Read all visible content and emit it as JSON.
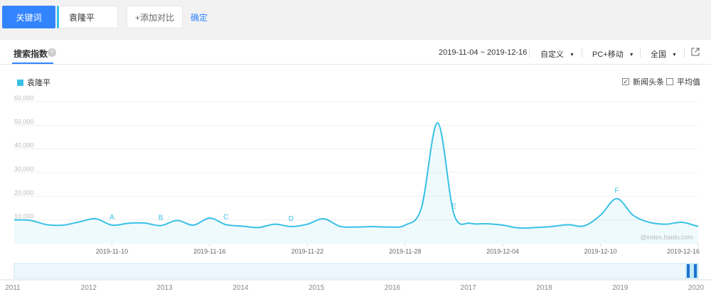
{
  "topbar": {
    "keyword_button": "关键词",
    "keyword_value": "袁隆平",
    "add_compare": "+添加对比",
    "confirm": "确定"
  },
  "panel": {
    "title": "搜索指数",
    "date_range": "2019-11-04 ~ 2019-12-16",
    "custom_label": "自定义",
    "device_label": "PC+移动",
    "region_label": "全国",
    "watermark": "@index.baidu.com"
  },
  "legend": {
    "series_name": "袁隆平",
    "checkbox_news": "新闻头条",
    "checkbox_avg": "平均值",
    "news_checked": true,
    "avg_checked": false,
    "series_color": "#39c1e6"
  },
  "chart_data": {
    "type": "area",
    "ylim": [
      0,
      60000
    ],
    "y_ticks": [
      "10,000",
      "20,000",
      "30,000",
      "40,000",
      "50,000",
      "60,000"
    ],
    "x_ticks": [
      "2019-11-10",
      "2019-11-16",
      "2019-11-22",
      "2019-11-28",
      "2019-12-04",
      "2019-12-10",
      "2019-12-16"
    ],
    "series": [
      {
        "name": "袁隆平",
        "x": [
          "2019-11-04",
          "2019-11-05",
          "2019-11-06",
          "2019-11-07",
          "2019-11-08",
          "2019-11-09",
          "2019-11-10",
          "2019-11-11",
          "2019-11-12",
          "2019-11-13",
          "2019-11-14",
          "2019-11-15",
          "2019-11-16",
          "2019-11-17",
          "2019-11-18",
          "2019-11-19",
          "2019-11-20",
          "2019-11-21",
          "2019-11-22",
          "2019-11-23",
          "2019-11-24",
          "2019-11-25",
          "2019-11-26",
          "2019-11-27",
          "2019-11-28",
          "2019-11-29",
          "2019-11-30",
          "2019-12-01",
          "2019-12-02",
          "2019-12-03",
          "2019-12-04",
          "2019-12-05",
          "2019-12-06",
          "2019-12-07",
          "2019-12-08",
          "2019-12-09",
          "2019-12-10",
          "2019-12-11",
          "2019-12-12",
          "2019-12-13",
          "2019-12-14",
          "2019-12-15",
          "2019-12-16"
        ],
        "values": [
          10000,
          9800,
          8000,
          7800,
          9200,
          10500,
          7800,
          8600,
          8700,
          7600,
          9800,
          7800,
          10800,
          8000,
          7400,
          6800,
          8200,
          7200,
          8200,
          10500,
          7300,
          7000,
          7200,
          7000,
          7800,
          15000,
          51000,
          12500,
          8600,
          8400,
          7800,
          6600,
          6800,
          7200,
          8000,
          7500,
          12000,
          19000,
          12000,
          9000,
          8200,
          9000,
          7200
        ]
      }
    ],
    "annotations": [
      {
        "label": "A",
        "x": "2019-11-10"
      },
      {
        "label": "B",
        "x": "2019-11-13"
      },
      {
        "label": "C",
        "x": "2019-11-17"
      },
      {
        "label": "D",
        "x": "2019-11-21"
      },
      {
        "label": "E",
        "x": "2019-12-01"
      },
      {
        "label": "F",
        "x": "2019-12-11"
      }
    ]
  },
  "timeline": {
    "years": [
      "2011",
      "2012",
      "2013",
      "2014",
      "2015",
      "2016",
      "2017",
      "2018",
      "2019",
      "2020"
    ]
  }
}
